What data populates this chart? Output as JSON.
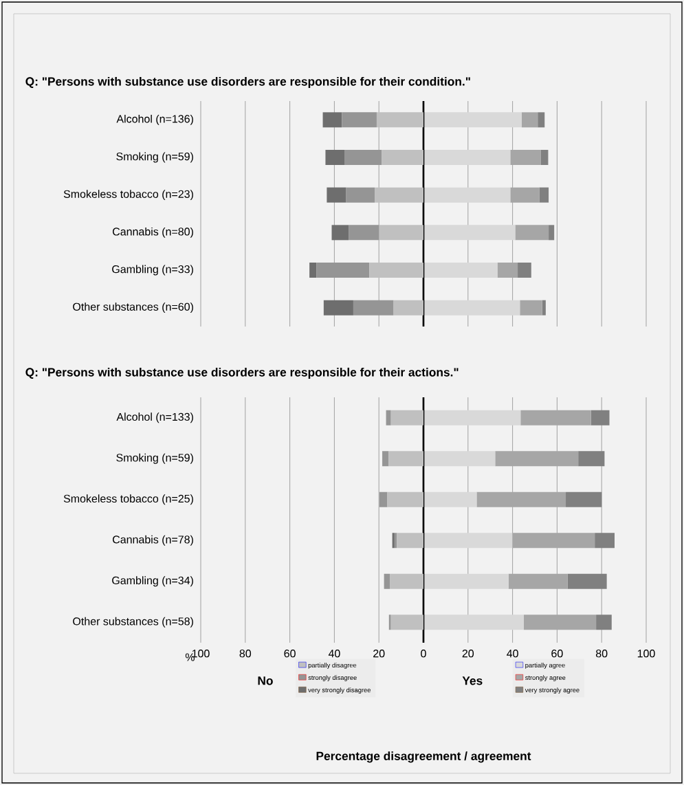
{
  "chart_data": [
    {
      "type": "bar",
      "orientation": "horizontal",
      "stacked": true,
      "title": "Q: \"Persons with substance use disorders are responsible for their condition.\"",
      "categories": [
        "Alcohol (n=136)",
        "Smoking (n=59)",
        "Smokeless tobacco (n=23)",
        "Cannabis (n=80)",
        "Gambling (n=33)",
        "Other substances (n=60)"
      ],
      "xlim": [
        -100,
        100
      ],
      "xticks": [
        -100,
        -80,
        -60,
        -40,
        -20,
        0,
        20,
        40,
        60,
        80,
        100
      ],
      "tick_labels": "y",
      "grid": "x",
      "ref_lines": [
        {
          "axis": "x",
          "value": 0,
          "color": "#000000"
        }
      ],
      "series": [
        {
          "color": "#c0c0c0",
          "values": [
            -21,
            -18.8,
            -21.9,
            -19.9,
            -24.3,
            -13.4
          ]
        },
        {
          "color": "#959595",
          "values": [
            -15.6,
            -16.7,
            -12.8,
            -13.7,
            -23.7,
            -18.1
          ]
        },
        {
          "color": "#6e6e6e",
          "values": [
            -8.6,
            -8.5,
            -8.7,
            -7.6,
            -3.2,
            -13.3
          ]
        },
        {
          "color": "#d9d9d9",
          "values": [
            44.1,
            39,
            39,
            41.2,
            33.2,
            43.3
          ]
        },
        {
          "color": "#a6a6a6",
          "values": [
            7.2,
            13.6,
            13,
            15,
            9.1,
            10
          ]
        },
        {
          "color": "#808080",
          "values": [
            3.1,
            3.4,
            4.2,
            2.5,
            6.1,
            1.6
          ]
        }
      ]
    },
    {
      "type": "bar",
      "orientation": "horizontal",
      "stacked": true,
      "title": "Q: \"Persons with substance use disorders are responsible for their actions.\"",
      "categories": [
        "Alcohol (n=133)",
        "Smoking (n=59)",
        "Smokeless tobacco (n=25)",
        "Cannabis (n=78)",
        "Gambling (n=34)",
        "Other substances (n=58)"
      ],
      "xlim": [
        -100,
        100
      ],
      "xticks": [
        {
          "value": -100,
          "label": "100"
        },
        {
          "value": -80,
          "label": "80"
        },
        {
          "value": -60,
          "label": "60"
        },
        {
          "value": -40,
          "label": "40"
        },
        {
          "value": -20,
          "label": "20"
        },
        0,
        20,
        40,
        60,
        80,
        100
      ],
      "grid": "x",
      "legend": "bottom",
      "xlabel": "Percentage disagreement / agreement",
      "annotations": [
        "%",
        "No",
        "Yes"
      ],
      "ref_lines": [
        {
          "axis": "x",
          "value": 0,
          "color": "#000000"
        }
      ],
      "series": [
        {
          "name": "partially disagree",
          "color": "#c0c0c0",
          "values": [
            -14.6,
            -15.6,
            -16.2,
            -12,
            -15.1,
            -14.6
          ]
        },
        {
          "name": "strongly disagree",
          "color": "#959595",
          "values": [
            -2.2,
            -2.9,
            -3.6,
            -1,
            -2.6,
            -0.9
          ]
        },
        {
          "name": "very strongly disagree",
          "color": "#6e6e6e",
          "values": [
            0,
            0,
            0,
            -1,
            0,
            0
          ]
        },
        {
          "name": "partially agree",
          "color": "#d9d9d9",
          "values": [
            43.6,
            32.2,
            23.9,
            39.9,
            38.2,
            45
          ]
        },
        {
          "name": "strongly agree",
          "color": "#a6a6a6",
          "values": [
            31.6,
            37.3,
            40,
            37,
            26.5,
            32.5
          ]
        },
        {
          "name": "very strongly agree",
          "color": "#808080",
          "values": [
            8.3,
            11.8,
            16.1,
            8.9,
            17.6,
            7
          ]
        }
      ]
    }
  ]
}
